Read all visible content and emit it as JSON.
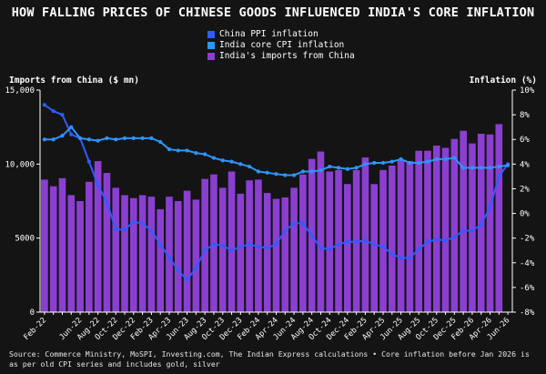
{
  "header": {
    "title": "HOW FALLING PRICES OF CHINESE GOODS INFLUENCED INDIA'S CORE INFLATION"
  },
  "footer": {
    "source": "Source: Commerce Ministry, MoSPI, Investing.com, The Indian Express calculations • Core inflation before Jan 2026 is as per old CPI series and includes gold, silver"
  },
  "chart_data": {
    "type": "bar",
    "title": "HOW FALLING PRICES OF CHINESE GOODS INFLUENCED INDIA'S CORE INFLATION",
    "ylabel_left": "Imports from China ($ mn)",
    "ylabel_right": "Inflation (%)",
    "ylim_left": [
      0,
      15000
    ],
    "ylim_right": [
      -8,
      10
    ],
    "yticks_left": [
      "0",
      "5000",
      "10,000",
      "15,000"
    ],
    "yticks_right": [
      "-8%",
      "-6%",
      "-4%",
      "-2%",
      "0%",
      "2%",
      "4%",
      "6%",
      "8%",
      "10%"
    ],
    "grid": false,
    "legend_position": "top-center",
    "colors": {
      "china_ppi": "#2f5cff",
      "core_cpi": "#2e94ff",
      "imports": "#8a3fd1",
      "axis": "#ffffff",
      "background": "#141414"
    },
    "x": [
      "Feb-22",
      "Mar-22",
      "Apr-22",
      "May-22",
      "Jun-22",
      "Jul-22",
      "Aug-22",
      "Sep-22",
      "Oct-22",
      "Nov-22",
      "Dec-22",
      "Jan-23",
      "Feb-23",
      "Mar-23",
      "Apr-23",
      "May-23",
      "Jun-23",
      "Jul-23",
      "Aug-23",
      "Sep-23",
      "Oct-23",
      "Nov-23",
      "Dec-23",
      "Jan-24",
      "Feb-24",
      "Mar-24",
      "Apr-24",
      "May-24",
      "Jun-24",
      "Jul-24",
      "Aug-24",
      "Sep-24",
      "Oct-24",
      "Nov-24",
      "Dec-24",
      "Jan-25",
      "Feb-25",
      "Mar-25",
      "Apr-25",
      "May-25",
      "Jun-25",
      "Jul-25",
      "Aug-25",
      "Sep-25",
      "Oct-25",
      "Nov-25",
      "Dec-25",
      "Jan-26",
      "Feb-26",
      "Mar-26",
      "Apr-26",
      "May-26",
      "Jun-26"
    ],
    "xtick_labels": [
      "Feb-22",
      "Jun-22",
      "Aug-22",
      "Oct-22",
      "Dec-22",
      "Feb-23",
      "Apr-23",
      "Jun-23",
      "Aug-23",
      "Oct-23",
      "Dec-23",
      "Feb-24",
      "Apr-24",
      "Jun-24",
      "Aug-24",
      "Oct-24",
      "Dec-24",
      "Feb-25",
      "Apr-25",
      "Jun-25",
      "Aug-25",
      "Oct-25",
      "Dec-25",
      "Feb-26",
      "Apr-26",
      "Jun-26"
    ],
    "series": [
      {
        "name": "China PPI inflation",
        "axis": "right",
        "kind": "line",
        "values": [
          8.8,
          8.3,
          8.0,
          6.4,
          6.1,
          4.2,
          2.3,
          0.9,
          -1.3,
          -1.3,
          -0.7,
          -0.8,
          -1.4,
          -2.5,
          -3.6,
          -4.6,
          -5.4,
          -4.4,
          -3.0,
          -2.5,
          -2.6,
          -3.0,
          -2.7,
          -2.5,
          -2.7,
          -2.8,
          -2.5,
          -1.4,
          -0.8,
          -0.8,
          -1.8,
          -2.8,
          -2.9,
          -2.5,
          -2.3,
          -2.3,
          -2.2,
          -2.5,
          -2.7,
          -3.3,
          -3.6,
          -3.6,
          -2.9,
          -2.3,
          -2.1,
          -2.2,
          -1.9,
          -1.4,
          -1.4,
          -0.9,
          0.5,
          3.0,
          4.0
        ]
      },
      {
        "name": "India core CPI inflation",
        "axis": "right",
        "kind": "line",
        "values": [
          6.0,
          6.0,
          6.3,
          7.0,
          6.1,
          6.0,
          5.9,
          6.1,
          6.0,
          6.1,
          6.1,
          6.1,
          6.1,
          5.8,
          5.2,
          5.1,
          5.1,
          4.9,
          4.8,
          4.5,
          4.3,
          4.2,
          4.0,
          3.8,
          3.4,
          3.3,
          3.2,
          3.1,
          3.1,
          3.4,
          3.4,
          3.5,
          3.8,
          3.7,
          3.6,
          3.7,
          4.0,
          4.1,
          4.1,
          4.2,
          4.4,
          4.1,
          4.1,
          4.2,
          4.4,
          4.4,
          4.5,
          3.7,
          3.7,
          3.7,
          3.7,
          3.8,
          3.9
        ]
      },
      {
        "name": "India's imports from China",
        "axis": "left",
        "kind": "bar",
        "values": [
          8950,
          8500,
          9050,
          7900,
          7500,
          8800,
          10200,
          9400,
          8400,
          7900,
          7700,
          7900,
          7800,
          6950,
          7800,
          7500,
          8200,
          7600,
          9000,
          9300,
          8400,
          9500,
          8000,
          8900,
          8950,
          8050,
          7650,
          7750,
          8400,
          9300,
          10350,
          10850,
          9500,
          9600,
          8650,
          9600,
          10450,
          8650,
          9600,
          9900,
          10300,
          10200,
          10900,
          10900,
          11250,
          11100,
          11700,
          12250,
          11400,
          12050,
          12000,
          12700,
          0
        ]
      }
    ]
  }
}
